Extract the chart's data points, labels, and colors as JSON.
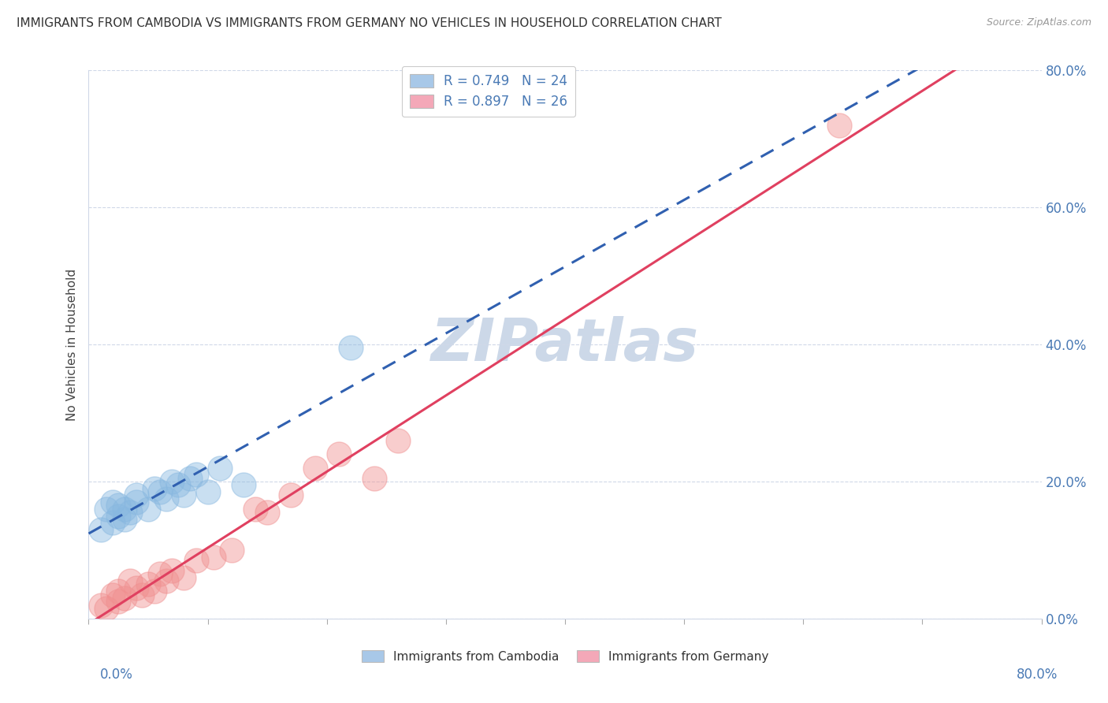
{
  "title": "IMMIGRANTS FROM CAMBODIA VS IMMIGRANTS FROM GERMANY NO VEHICLES IN HOUSEHOLD CORRELATION CHART",
  "source": "Source: ZipAtlas.com",
  "ylabel": "No Vehicles in Household",
  "xlim": [
    0.0,
    80.0
  ],
  "ylim": [
    0.0,
    80.0
  ],
  "legend_color1": "#a8c8e8",
  "legend_color2": "#f4a8b8",
  "color_cambodia": "#88b8e0",
  "color_germany": "#f09090",
  "color_line_cambodia": "#3060b0",
  "color_line_germany": "#e04060",
  "color_trend_dash": "#a0b8d0",
  "watermark": "ZIPatlas",
  "watermark_color": "#ccd8e8",
  "R_cambodia": 0.749,
  "N_cambodia": 24,
  "R_germany": 0.897,
  "N_germany": 26,
  "cambodia_x": [
    1.0,
    1.5,
    2.0,
    2.0,
    2.5,
    2.5,
    3.0,
    3.0,
    3.5,
    4.0,
    4.0,
    5.0,
    5.5,
    6.0,
    6.5,
    7.0,
    7.5,
    8.0,
    8.5,
    9.0,
    10.0,
    11.0,
    13.0,
    22.0
  ],
  "cambodia_y": [
    13.0,
    16.0,
    14.0,
    17.0,
    15.0,
    16.5,
    14.5,
    16.0,
    15.5,
    17.0,
    18.0,
    16.0,
    19.0,
    18.5,
    17.5,
    20.0,
    19.5,
    18.0,
    20.5,
    21.0,
    18.5,
    22.0,
    19.5,
    39.5
  ],
  "germany_x": [
    1.0,
    1.5,
    2.0,
    2.5,
    2.5,
    3.0,
    3.5,
    4.0,
    4.5,
    5.0,
    5.5,
    6.0,
    6.5,
    7.0,
    8.0,
    9.0,
    10.5,
    12.0,
    14.0,
    15.0,
    17.0,
    19.0,
    21.0,
    24.0,
    26.0,
    63.0
  ],
  "germany_y": [
    2.0,
    1.5,
    3.5,
    2.5,
    4.0,
    3.0,
    5.5,
    4.5,
    3.5,
    5.0,
    4.0,
    6.5,
    5.5,
    7.0,
    6.0,
    8.5,
    9.0,
    10.0,
    16.0,
    15.5,
    18.0,
    22.0,
    24.0,
    20.5,
    26.0,
    72.0
  ]
}
